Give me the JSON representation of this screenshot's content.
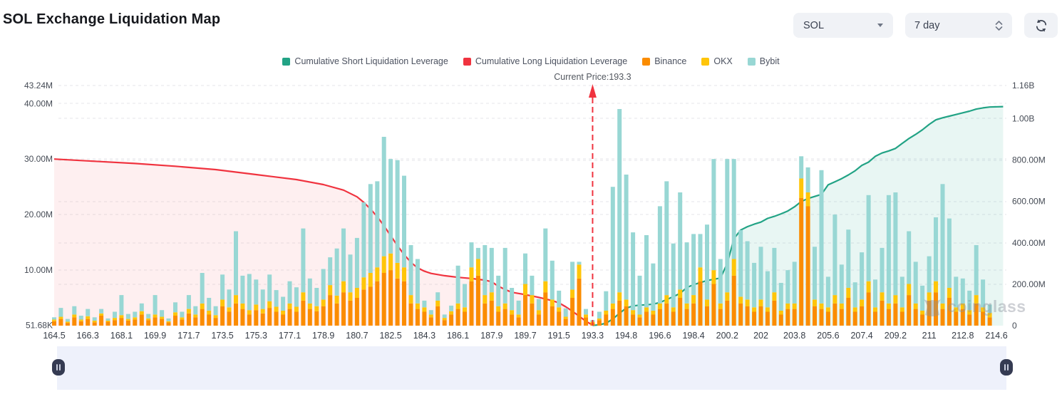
{
  "header": {
    "title": "SOL Exchange Liquidation Map",
    "coin_select_value": "SOL",
    "period_value": "7 day"
  },
  "legend": [
    {
      "label": "Cumulative Short Liquidation Leverage",
      "color": "#22A385"
    },
    {
      "label": "Cumulative Long Liquidation Leverage",
      "color": "#F0333F"
    },
    {
      "label": "Binance",
      "color": "#FB8C00"
    },
    {
      "label": "OKX",
      "color": "#FFC509"
    },
    {
      "label": "Bybit",
      "color": "#98D7D4"
    }
  ],
  "current_price_label": "Current Price:193.3",
  "watermark": "coinglass",
  "chart_data": {
    "type": "bar",
    "title": "SOL Exchange Liquidation Map",
    "current_price": 193.3,
    "grid": true,
    "legend_position": "top-center",
    "x_labels": [
      "164.5",
      "166.3",
      "168.1",
      "169.9",
      "171.7",
      "173.5",
      "175.3",
      "177.1",
      "178.9",
      "180.7",
      "182.5",
      "184.3",
      "186.1",
      "187.9",
      "189.7",
      "191.5",
      "193.3",
      "194.8",
      "196.6",
      "198.4",
      "200.2",
      "202",
      "203.8",
      "205.6",
      "207.4",
      "209.2",
      "211",
      "212.8",
      "214.6"
    ],
    "left_axis": {
      "unit": "M",
      "ylim": [
        0,
        43.24
      ],
      "ticks": [
        {
          "label": "43.24M",
          "value": 43.24
        },
        {
          "label": "40.00M",
          "value": 40
        },
        {
          "label": "30.00M",
          "value": 30
        },
        {
          "label": "20.00M",
          "value": 20
        },
        {
          "label": "10.00M",
          "value": 10
        },
        {
          "label": "51.68K",
          "value": 0.05168
        }
      ]
    },
    "right_axis": {
      "unit": "M",
      "ylim": [
        0,
        1160
      ],
      "ticks": [
        {
          "label": "1.16B",
          "value": 1160
        },
        {
          "label": "1.00B",
          "value": 1000
        },
        {
          "label": "800.00M",
          "value": 800
        },
        {
          "label": "600.00M",
          "value": 600
        },
        {
          "label": "400.00M",
          "value": 400
        },
        {
          "label": "200.00M",
          "value": 200
        },
        {
          "label": "0",
          "value": 0
        }
      ]
    },
    "stack_order": [
      "Binance",
      "OKX",
      "Bybit"
    ],
    "exchange_colors": {
      "Binance": "#FB8C00",
      "OKX": "#FFC509",
      "Bybit": "#98D7D4"
    },
    "bars_millions": [
      [
        0.8,
        0.3,
        0.4
      ],
      [
        1.2,
        0.4,
        1.6
      ],
      [
        0.5,
        0.2,
        0.5
      ],
      [
        1.5,
        0.5,
        1.5
      ],
      [
        0.8,
        0.3,
        0.7
      ],
      [
        1.2,
        0.5,
        1.3
      ],
      [
        0.6,
        0.3,
        0.6
      ],
      [
        1.8,
        0.4,
        0.8
      ],
      [
        0.7,
        0.2,
        0.4
      ],
      [
        1.0,
        0.4,
        1.1
      ],
      [
        1.4,
        0.5,
        3.6
      ],
      [
        0.9,
        0.3,
        0.9
      ],
      [
        1.1,
        0.4,
        1.0
      ],
      [
        2.0,
        0.6,
        1.4
      ],
      [
        1.0,
        0.3,
        0.8
      ],
      [
        1.5,
        0.5,
        3.5
      ],
      [
        1.2,
        0.4,
        1.2
      ],
      [
        0.6,
        0.2,
        0.5
      ],
      [
        1.8,
        0.6,
        1.8
      ],
      [
        1.1,
        0.4,
        1.0
      ],
      [
        2.2,
        0.8,
        2.5
      ],
      [
        1.5,
        0.5,
        1.5
      ],
      [
        3.0,
        1.0,
        5.5
      ],
      [
        2.0,
        0.7,
        2.3
      ],
      [
        1.4,
        0.5,
        1.6
      ],
      [
        3.5,
        1.2,
        4.5
      ],
      [
        2.5,
        0.8,
        3.2
      ],
      [
        4.0,
        1.5,
        11.5
      ],
      [
        3.0,
        1.0,
        5.0
      ],
      [
        2.0,
        0.8,
        6.5
      ],
      [
        2.8,
        1.0,
        4.5
      ],
      [
        2.2,
        0.8,
        3.5
      ],
      [
        3.2,
        1.2,
        4.8
      ],
      [
        2.5,
        0.9,
        3.0
      ],
      [
        2.0,
        0.7,
        2.5
      ],
      [
        3.0,
        1.0,
        4.0
      ],
      [
        2.5,
        0.9,
        3.5
      ],
      [
        4.5,
        1.5,
        11.5
      ],
      [
        3.0,
        1.0,
        4.5
      ],
      [
        2.6,
        0.9,
        3.3
      ],
      [
        3.5,
        1.2,
        5.5
      ],
      [
        5.5,
        1.8,
        5.0
      ],
      [
        4.0,
        1.4,
        8.5
      ],
      [
        6.0,
        2.0,
        9.5
      ],
      [
        4.5,
        1.5,
        6.8
      ],
      [
        5.0,
        1.8,
        9.0
      ],
      [
        6.5,
        2.2,
        13.5
      ],
      [
        7.0,
        2.5,
        16.0
      ],
      [
        8.0,
        2.5,
        15.5
      ],
      [
        9.5,
        3.0,
        21.5
      ],
      [
        10.0,
        3.0,
        17.0
      ],
      [
        8.5,
        2.8,
        18.5
      ],
      [
        8.0,
        2.5,
        16.5
      ],
      [
        4.0,
        1.5,
        9.0
      ],
      [
        3.0,
        1.0,
        8.0
      ],
      [
        2.5,
        0.8,
        1.2
      ],
      [
        1.5,
        0.5,
        0.8
      ],
      [
        3.5,
        1.0,
        1.5
      ],
      [
        1.0,
        0.4,
        0.6
      ],
      [
        2.0,
        0.6,
        1.0
      ],
      [
        3.0,
        1.0,
        6.8
      ],
      [
        2.5,
        0.8,
        4.2
      ],
      [
        8.0,
        2.5,
        4.5
      ],
      [
        9.0,
        3.0,
        2.0
      ],
      [
        4.0,
        1.5,
        9.0
      ],
      [
        4.5,
        1.5,
        8.0
      ],
      [
        2.5,
        1.0,
        5.5
      ],
      [
        3.0,
        1.0,
        10.0
      ],
      [
        2.0,
        0.8,
        4.0
      ],
      [
        1.5,
        0.5,
        2.5
      ],
      [
        5.5,
        2.0,
        5.5
      ],
      [
        4.0,
        1.5,
        3.5
      ],
      [
        2.0,
        0.8,
        2.0
      ],
      [
        6.0,
        2.0,
        9.5
      ],
      [
        3.5,
        1.2,
        7.0
      ],
      [
        2.5,
        0.8,
        3.0
      ],
      [
        1.2,
        0.4,
        1.5
      ],
      [
        5.0,
        1.5,
        5.0
      ],
      [
        8.5,
        2.5,
        0.5
      ],
      [
        1.5,
        0.5,
        1.0
      ],
      [
        0.5,
        0.2,
        0.3
      ],
      [
        1.0,
        0.3,
        1.2
      ],
      [
        2.0,
        0.7,
        3.5
      ],
      [
        3.0,
        1.0,
        21.0
      ],
      [
        4.5,
        1.5,
        33.0
      ],
      [
        3.5,
        1.2,
        22.5
      ],
      [
        2.0,
        0.8,
        14.0
      ],
      [
        1.5,
        0.5,
        7.0
      ],
      [
        2.5,
        0.8,
        13.0
      ],
      [
        2.0,
        0.7,
        8.5
      ],
      [
        3.0,
        1.0,
        17.5
      ],
      [
        4.0,
        1.5,
        20.5
      ],
      [
        2.5,
        0.8,
        11.5
      ],
      [
        5.0,
        1.5,
        17.5
      ],
      [
        3.0,
        1.0,
        11.0
      ],
      [
        4.0,
        1.5,
        11.0
      ],
      [
        8.0,
        2.5,
        6.0
      ],
      [
        3.5,
        1.2,
        13.5
      ],
      [
        7.5,
        2.5,
        20.0
      ],
      [
        3.0,
        1.0,
        8.0
      ],
      [
        4.5,
        1.5,
        24.0
      ],
      [
        9.0,
        3.0,
        18.0
      ],
      [
        4.0,
        1.2,
        12.0
      ],
      [
        3.5,
        1.2,
        10.5
      ],
      [
        2.5,
        0.8,
        8.0
      ],
      [
        3.5,
        1.2,
        9.5
      ],
      [
        2.5,
        0.8,
        6.5
      ],
      [
        4.5,
        1.5,
        8.0
      ],
      [
        2.0,
        0.7,
        5.0
      ],
      [
        3.0,
        1.0,
        6.0
      ],
      [
        3.0,
        1.0,
        7.5
      ],
      [
        23.0,
        3.5,
        4.0
      ],
      [
        21.5,
        2.5,
        4.5
      ],
      [
        3.5,
        1.2,
        9.5
      ],
      [
        3.0,
        1.0,
        24.0
      ],
      [
        2.5,
        0.8,
        5.5
      ],
      [
        4.0,
        1.5,
        14.5
      ],
      [
        3.0,
        1.0,
        7.0
      ],
      [
        5.0,
        1.8,
        10.5
      ],
      [
        2.5,
        0.8,
        4.5
      ],
      [
        3.5,
        1.2,
        8.5
      ],
      [
        6.0,
        2.0,
        15.5
      ],
      [
        2.5,
        0.8,
        5.0
      ],
      [
        4.5,
        1.5,
        8.0
      ],
      [
        3.0,
        1.0,
        19.5
      ],
      [
        4.0,
        1.5,
        18.5
      ],
      [
        2.5,
        0.8,
        5.5
      ],
      [
        5.5,
        2.0,
        9.5
      ],
      [
        3.0,
        1.0,
        7.5
      ],
      [
        2.0,
        0.7,
        4.5
      ],
      [
        4.5,
        1.5,
        6.5
      ],
      [
        6.0,
        2.0,
        11.5
      ],
      [
        3.0,
        1.0,
        21.5
      ],
      [
        5.0,
        1.8,
        12.5
      ],
      [
        2.5,
        0.8,
        5.5
      ],
      [
        3.0,
        1.0,
        4.5
      ],
      [
        2.0,
        0.8,
        3.5
      ],
      [
        4.0,
        1.5,
        9.0
      ],
      [
        2.5,
        0.8,
        5.0
      ],
      [
        1.5,
        0.8,
        1.5
      ]
    ],
    "cumulative_long": {
      "name": "Cumulative Long Liquidation Leverage",
      "color": "#F0333F",
      "axis": "left",
      "points": [
        [
          0,
          30
        ],
        [
          6,
          29.6
        ],
        [
          12,
          29.2
        ],
        [
          18,
          28.7
        ],
        [
          24,
          28.1
        ],
        [
          30,
          27.2
        ],
        [
          36,
          26.3
        ],
        [
          40,
          25.4
        ],
        [
          43,
          24.4
        ],
        [
          45,
          23.2
        ],
        [
          46,
          22.2
        ],
        [
          47,
          21.0
        ],
        [
          48,
          19.6
        ],
        [
          49,
          18.0
        ],
        [
          50,
          16.2
        ],
        [
          51,
          14.4
        ],
        [
          52,
          12.8
        ],
        [
          53,
          11.4
        ],
        [
          54,
          10.4
        ],
        [
          55,
          9.8
        ],
        [
          56,
          9.4
        ],
        [
          58,
          9.0
        ],
        [
          60,
          8.7
        ],
        [
          62,
          8.5
        ],
        [
          64,
          8.2
        ],
        [
          65,
          7.9
        ],
        [
          66,
          7.1
        ],
        [
          67,
          6.5
        ],
        [
          68,
          6.0
        ],
        [
          70,
          5.6
        ],
        [
          72,
          5.1
        ],
        [
          74,
          4.5
        ],
        [
          75,
          4.1
        ],
        [
          76,
          3.4
        ],
        [
          77,
          2.6
        ],
        [
          78,
          1.7
        ],
        [
          79,
          0.8
        ],
        [
          80,
          0.1
        ]
      ]
    },
    "cumulative_short": {
      "name": "Cumulative Short Liquidation Leverage",
      "color": "#22A385",
      "axis": "right",
      "points": [
        [
          80,
          1
        ],
        [
          81,
          4
        ],
        [
          82,
          12
        ],
        [
          83,
          32
        ],
        [
          84,
          60
        ],
        [
          85,
          85
        ],
        [
          86,
          95
        ],
        [
          87,
          99
        ],
        [
          88,
          101
        ],
        [
          89,
          104
        ],
        [
          90,
          112
        ],
        [
          91,
          126
        ],
        [
          92,
          140
        ],
        [
          93,
          156
        ],
        [
          94,
          184
        ],
        [
          95,
          198
        ],
        [
          96,
          208
        ],
        [
          97,
          218
        ],
        [
          98,
          224
        ],
        [
          99,
          230
        ],
        [
          100,
          300
        ],
        [
          101,
          420
        ],
        [
          102,
          462
        ],
        [
          103,
          478
        ],
        [
          104,
          490
        ],
        [
          105,
          500
        ],
        [
          106,
          518
        ],
        [
          107,
          528
        ],
        [
          108,
          540
        ],
        [
          109,
          554
        ],
        [
          110,
          574
        ],
        [
          111,
          600
        ],
        [
          112,
          614
        ],
        [
          113,
          624
        ],
        [
          114,
          634
        ],
        [
          115,
          680
        ],
        [
          116,
          695
        ],
        [
          117,
          710
        ],
        [
          118,
          728
        ],
        [
          119,
          748
        ],
        [
          120,
          774
        ],
        [
          121,
          790
        ],
        [
          122,
          818
        ],
        [
          123,
          834
        ],
        [
          124,
          844
        ],
        [
          125,
          856
        ],
        [
          126,
          880
        ],
        [
          127,
          904
        ],
        [
          128,
          924
        ],
        [
          129,
          946
        ],
        [
          130,
          972
        ],
        [
          131,
          994
        ],
        [
          132,
          1004
        ],
        [
          133,
          1012
        ],
        [
          134,
          1020
        ],
        [
          135,
          1028
        ],
        [
          136,
          1036
        ],
        [
          137,
          1046
        ],
        [
          138,
          1052
        ],
        [
          139,
          1056
        ],
        [
          141,
          1058
        ]
      ]
    },
    "fills": {
      "long_area": "rgba(240,51,63,0.08)",
      "short_area": "rgba(34,163,133,0.10)"
    }
  }
}
